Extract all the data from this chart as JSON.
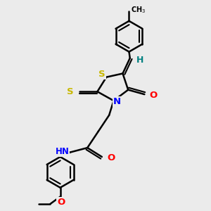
{
  "bg_color": "#ebebeb",
  "bond_color": "#000000",
  "bond_width": 1.8,
  "atom_colors": {
    "S": "#c8b800",
    "N": "#0000ff",
    "O": "#ff0000",
    "H": "#008080",
    "C": "#000000"
  },
  "font_size": 8.5,
  "fig_size": [
    3.0,
    3.0
  ],
  "dpi": 100
}
